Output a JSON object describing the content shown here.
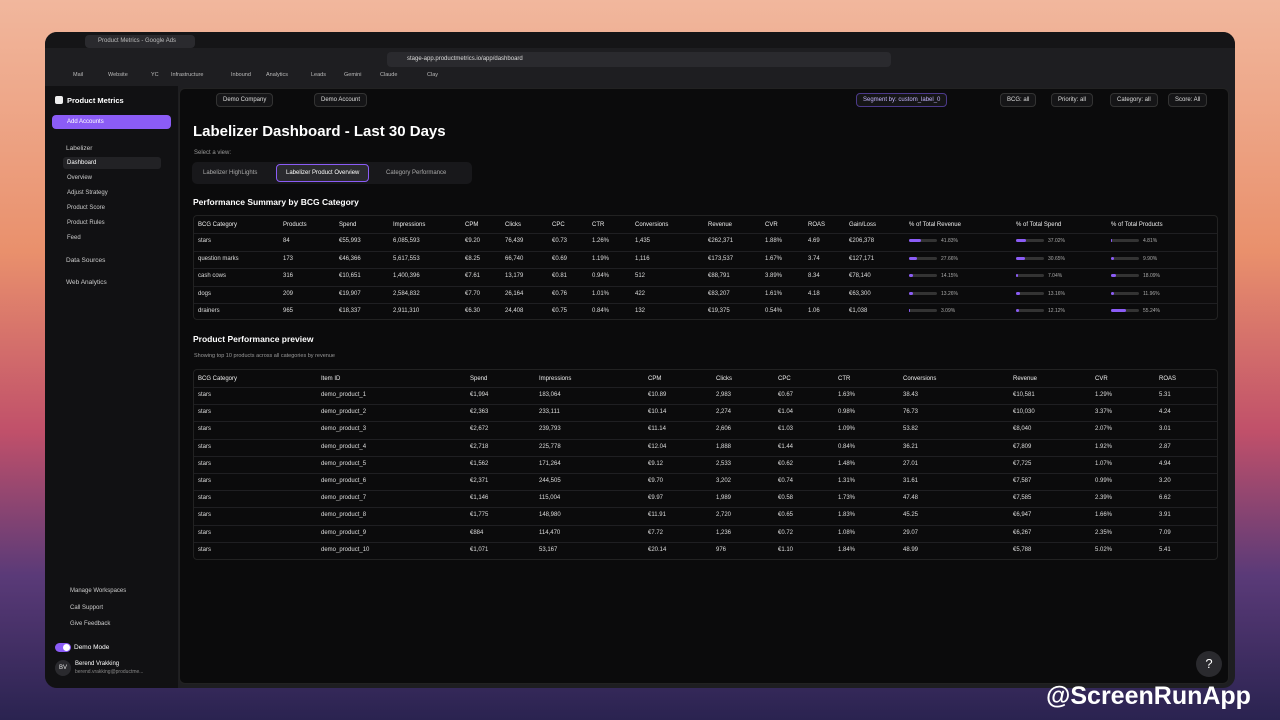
{
  "browser": {
    "tab_title": "Product Metrics - Google Ads",
    "url": "stage-app.productmetrics.io/app/dashboard",
    "bookmarks": [
      "Mail",
      "Website",
      "YC",
      "Infrastructure",
      "Inbound",
      "Analytics",
      "Leads",
      "Gemini",
      "Claude",
      "Clay"
    ]
  },
  "sidebar": {
    "brand": "Product Metrics",
    "add_button": "Add Accounts",
    "section": "Labelizer",
    "items": [
      "Dashboard",
      "Overview",
      "Adjust Strategy",
      "Product Score",
      "Product Rules",
      "Feed"
    ],
    "data_sources": "Data Sources",
    "web_analytics": "Web Analytics",
    "footer_links": [
      "Manage Workspaces",
      "Call Support",
      "Give Feedback"
    ],
    "demo_mode": "Demo Mode",
    "user": {
      "initials": "BV",
      "name": "Berend Vrakking",
      "email": "berend.vrakking@productme..."
    }
  },
  "topbar": {
    "company": "Demo Company",
    "account": "Demo Account",
    "segment": "Segment by: custom_label_0",
    "filters": [
      "BCG: all",
      "Priority: all",
      "Category: all",
      "Score: All"
    ]
  },
  "header": {
    "title": "Labelizer Dashboard - Last 30 Days",
    "view_label": "Select a view:",
    "tabs": [
      "Labelizer HighLights",
      "Labelizer Product Overview",
      "Category Performance"
    ]
  },
  "summary": {
    "title": "Performance Summary by BCG Category",
    "columns": [
      "BCG Category",
      "Products",
      "Spend",
      "Impressions",
      "CPM",
      "Clicks",
      "CPC",
      "CTR",
      "Conversions",
      "Revenue",
      "CVR",
      "ROAS",
      "Gain/Loss",
      "% of Total Revenue",
      "% of Total Spend",
      "% of Total Products"
    ],
    "rows": [
      [
        "stars",
        "84",
        "€55,993",
        "6,085,593",
        "€9.20",
        "76,439",
        "€0.73",
        "1.26%",
        "1,435",
        "€262,371",
        "1.88%",
        "4.69",
        "€206,378",
        {
          "value": 41.83,
          "label": "41.83%"
        },
        {
          "value": 37.02,
          "label": "37.02%"
        },
        {
          "value": 4.81,
          "label": "4.81%"
        }
      ],
      [
        "question marks",
        "173",
        "€46,366",
        "5,617,553",
        "€8.25",
        "66,740",
        "€0.69",
        "1.19%",
        "1,116",
        "€173,537",
        "1.67%",
        "3.74",
        "€127,171",
        {
          "value": 27.66,
          "label": "27.66%"
        },
        {
          "value": 30.65,
          "label": "30.65%"
        },
        {
          "value": 9.9,
          "label": "9.90%"
        }
      ],
      [
        "cash cows",
        "316",
        "€10,651",
        "1,400,396",
        "€7.61",
        "13,179",
        "€0.81",
        "0.94%",
        "512",
        "€88,791",
        "3.89%",
        "8.34",
        "€78,140",
        {
          "value": 14.15,
          "label": "14.15%"
        },
        {
          "value": 7.04,
          "label": "7.04%"
        },
        {
          "value": 18.09,
          "label": "18.09%"
        }
      ],
      [
        "dogs",
        "209",
        "€19,907",
        "2,584,832",
        "€7.70",
        "26,164",
        "€0.76",
        "1.01%",
        "422",
        "€83,207",
        "1.61%",
        "4.18",
        "€63,300",
        {
          "value": 13.26,
          "label": "13.26%"
        },
        {
          "value": 13.16,
          "label": "13.16%"
        },
        {
          "value": 11.96,
          "label": "11.96%"
        }
      ],
      [
        "drainers",
        "965",
        "€18,337",
        "2,911,310",
        "€6.30",
        "24,408",
        "€0.75",
        "0.84%",
        "132",
        "€19,375",
        "0.54%",
        "1.06",
        "€1,038",
        {
          "value": 3.09,
          "label": "3.09%"
        },
        {
          "value": 12.12,
          "label": "12.12%"
        },
        {
          "value": 55.24,
          "label": "55.24%"
        }
      ]
    ]
  },
  "preview": {
    "title": "Product Performance preview",
    "subtitle": "Showing top 10 products across all categories by revenue",
    "columns": [
      "BCG Category",
      "Item ID",
      "Spend",
      "Impressions",
      "CPM",
      "Clicks",
      "CPC",
      "CTR",
      "Conversions",
      "Revenue",
      "CVR",
      "ROAS"
    ],
    "rows": [
      [
        "stars",
        "demo_product_1",
        "€1,994",
        "183,064",
        "€10.89",
        "2,983",
        "€0.67",
        "1.63%",
        "38.43",
        "€10,581",
        "1.29%",
        "5.31"
      ],
      [
        "stars",
        "demo_product_2",
        "€2,363",
        "233,111",
        "€10.14",
        "2,274",
        "€1.04",
        "0.98%",
        "76.73",
        "€10,030",
        "3.37%",
        "4.24"
      ],
      [
        "stars",
        "demo_product_3",
        "€2,672",
        "239,793",
        "€11.14",
        "2,606",
        "€1.03",
        "1.09%",
        "53.82",
        "€8,040",
        "2.07%",
        "3.01"
      ],
      [
        "stars",
        "demo_product_4",
        "€2,718",
        "225,778",
        "€12.04",
        "1,888",
        "€1.44",
        "0.84%",
        "36.21",
        "€7,809",
        "1.92%",
        "2.87"
      ],
      [
        "stars",
        "demo_product_5",
        "€1,562",
        "171,264",
        "€9.12",
        "2,533",
        "€0.62",
        "1.48%",
        "27.01",
        "€7,725",
        "1.07%",
        "4.94"
      ],
      [
        "stars",
        "demo_product_6",
        "€2,371",
        "244,505",
        "€9.70",
        "3,202",
        "€0.74",
        "1.31%",
        "31.61",
        "€7,587",
        "0.99%",
        "3.20"
      ],
      [
        "stars",
        "demo_product_7",
        "€1,146",
        "115,004",
        "€9.97",
        "1,989",
        "€0.58",
        "1.73%",
        "47.48",
        "€7,585",
        "2.39%",
        "6.62"
      ],
      [
        "stars",
        "demo_product_8",
        "€1,775",
        "148,980",
        "€11.91",
        "2,720",
        "€0.65",
        "1.83%",
        "45.25",
        "€6,947",
        "1.66%",
        "3.91"
      ],
      [
        "stars",
        "demo_product_9",
        "€884",
        "114,470",
        "€7.72",
        "1,236",
        "€0.72",
        "1.08%",
        "29.07",
        "€6,267",
        "2.35%",
        "7.09"
      ],
      [
        "stars",
        "demo_product_10",
        "€1,071",
        "53,167",
        "€20.14",
        "976",
        "€1.10",
        "1.84%",
        "48.99",
        "€5,788",
        "5.02%",
        "5.41"
      ]
    ]
  },
  "watermark": "@ScreenRunApp",
  "help": "?"
}
